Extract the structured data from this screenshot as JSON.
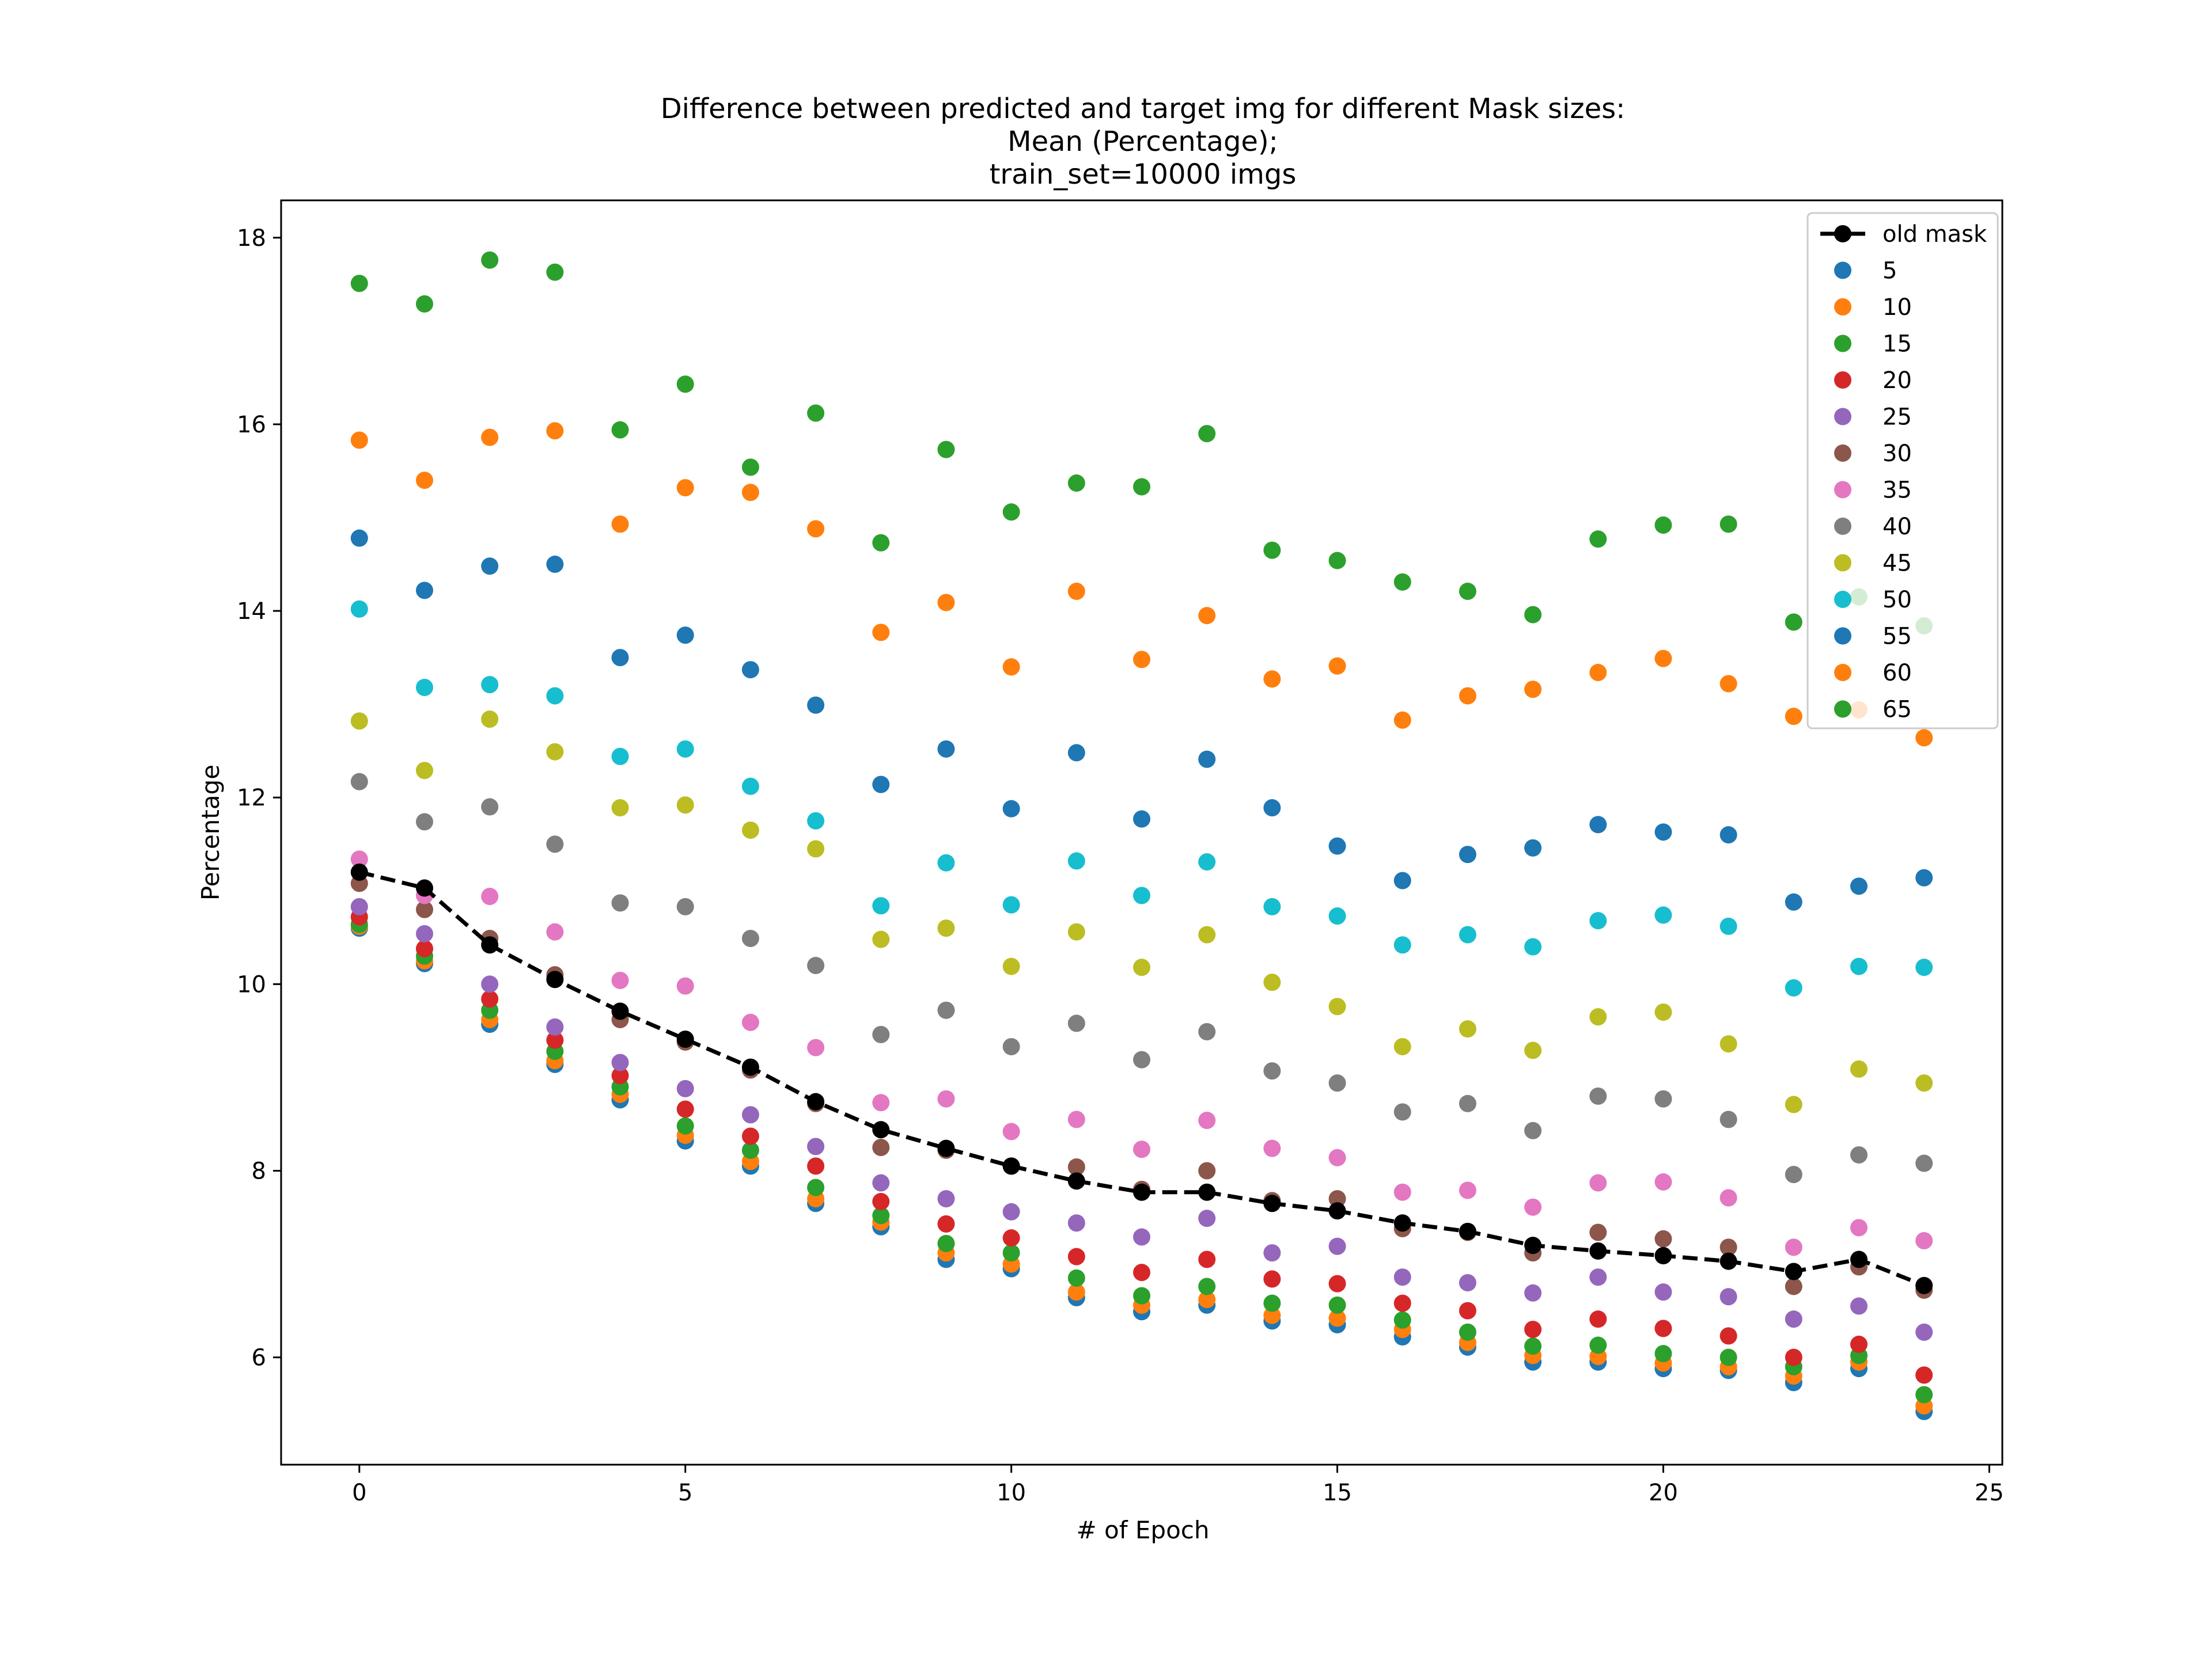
{
  "chart_data": {
    "type": "scatter",
    "title": [
      "Difference between predicted and target img for different Mask sizes:",
      "Mean (Percentage);",
      "train_set=10000 imgs"
    ],
    "xlabel": "# of Epoch",
    "ylabel": "Percentage",
    "xlim": [
      -1.2,
      25.2
    ],
    "ylim": [
      4.85,
      18.4
    ],
    "xticks": [
      0,
      5,
      10,
      15,
      20,
      25
    ],
    "yticks": [
      6,
      8,
      10,
      12,
      14,
      16,
      18
    ],
    "x": [
      0,
      1,
      2,
      3,
      4,
      5,
      6,
      7,
      8,
      9,
      10,
      11,
      12,
      13,
      14,
      15,
      16,
      17,
      18,
      19,
      20,
      21,
      22,
      23,
      24
    ],
    "legend_position": "top-right",
    "grid": false,
    "series": [
      {
        "name": "old mask",
        "kind": "line",
        "color": "#000000",
        "values": [
          11.2,
          11.03,
          10.42,
          10.05,
          9.71,
          9.41,
          9.11,
          8.74,
          8.44,
          8.24,
          8.05,
          7.89,
          7.77,
          7.77,
          7.65,
          7.57,
          7.44,
          7.35,
          7.2,
          7.14,
          7.09,
          7.03,
          6.92,
          7.05,
          6.77
        ]
      },
      {
        "name": "5",
        "kind": "scatter",
        "color": "#1f77b4",
        "values": [
          10.6,
          10.22,
          9.57,
          9.14,
          8.76,
          8.32,
          8.05,
          7.65,
          7.4,
          7.05,
          6.95,
          6.64,
          6.49,
          6.56,
          6.39,
          6.35,
          6.22,
          6.11,
          5.95,
          5.95,
          5.88,
          5.86,
          5.73,
          5.88,
          5.42
        ]
      },
      {
        "name": "10",
        "kind": "scatter",
        "color": "#ff7f0e",
        "values": [
          10.62,
          10.25,
          9.62,
          9.18,
          8.82,
          8.38,
          8.1,
          7.7,
          7.45,
          7.12,
          7.0,
          6.7,
          6.56,
          6.62,
          6.45,
          6.42,
          6.3,
          6.16,
          6.02,
          6.01,
          5.94,
          5.9,
          5.8,
          5.95,
          5.48
        ]
      },
      {
        "name": "15",
        "kind": "scatter",
        "color": "#2ca02c",
        "values": [
          10.64,
          10.3,
          9.72,
          9.28,
          8.9,
          8.48,
          8.22,
          7.82,
          7.52,
          7.22,
          7.12,
          6.85,
          6.66,
          6.76,
          6.58,
          6.56,
          6.4,
          6.27,
          6.12,
          6.13,
          6.04,
          6.0,
          5.9,
          6.02,
          5.6
        ]
      },
      {
        "name": "20",
        "kind": "scatter",
        "color": "#d62728",
        "values": [
          10.72,
          10.38,
          9.84,
          9.4,
          9.02,
          8.66,
          8.37,
          8.05,
          7.67,
          7.43,
          7.28,
          7.08,
          6.91,
          7.05,
          6.84,
          6.79,
          6.58,
          6.5,
          6.3,
          6.41,
          6.31,
          6.23,
          6.0,
          6.14,
          5.81
        ]
      },
      {
        "name": "25",
        "kind": "scatter",
        "color": "#9467bd",
        "values": [
          10.83,
          10.54,
          10.0,
          9.54,
          9.16,
          8.88,
          8.6,
          8.26,
          7.87,
          7.7,
          7.56,
          7.44,
          7.29,
          7.49,
          7.12,
          7.19,
          6.86,
          6.8,
          6.69,
          6.86,
          6.7,
          6.65,
          6.41,
          6.55,
          6.27
        ]
      },
      {
        "name": "30",
        "kind": "scatter",
        "color": "#8c564b",
        "values": [
          11.08,
          10.8,
          10.49,
          10.1,
          9.62,
          9.38,
          9.08,
          8.72,
          8.25,
          8.22,
          8.05,
          8.04,
          7.8,
          8.0,
          7.68,
          7.7,
          7.38,
          7.34,
          7.12,
          7.34,
          7.27,
          7.18,
          6.76,
          6.97,
          6.72
        ]
      },
      {
        "name": "35",
        "kind": "scatter",
        "color": "#e377c2",
        "values": [
          11.34,
          10.95,
          10.94,
          10.56,
          10.04,
          9.98,
          9.59,
          9.32,
          8.73,
          8.77,
          8.42,
          8.55,
          8.23,
          8.54,
          8.24,
          8.14,
          7.77,
          7.79,
          7.61,
          7.87,
          7.88,
          7.71,
          7.18,
          7.39,
          7.25
        ]
      },
      {
        "name": "40",
        "kind": "scatter",
        "color": "#7f7f7f",
        "values": [
          12.17,
          11.74,
          11.9,
          11.5,
          10.87,
          10.83,
          10.49,
          10.2,
          9.46,
          9.72,
          9.33,
          9.58,
          9.19,
          9.49,
          9.07,
          8.94,
          8.63,
          8.72,
          8.43,
          8.8,
          8.77,
          8.55,
          7.96,
          8.17,
          8.08
        ]
      },
      {
        "name": "45",
        "kind": "scatter",
        "color": "#bcbd22",
        "values": [
          12.82,
          12.29,
          12.84,
          12.49,
          11.89,
          11.92,
          11.65,
          11.45,
          10.48,
          10.6,
          10.19,
          10.56,
          10.18,
          10.53,
          10.02,
          9.76,
          9.33,
          9.52,
          9.29,
          9.65,
          9.7,
          9.36,
          8.71,
          9.09,
          8.94
        ]
      },
      {
        "name": "50",
        "kind": "scatter",
        "color": "#17becf",
        "values": [
          14.02,
          13.18,
          13.21,
          13.09,
          12.44,
          12.52,
          12.12,
          11.75,
          10.84,
          11.3,
          10.85,
          11.32,
          10.95,
          11.31,
          10.83,
          10.73,
          10.42,
          10.53,
          10.4,
          10.68,
          10.74,
          10.62,
          9.96,
          10.19,
          10.18
        ]
      },
      {
        "name": "55",
        "kind": "scatter",
        "color": "#1f77b4",
        "values": [
          14.78,
          14.22,
          14.48,
          14.5,
          13.5,
          13.74,
          13.37,
          12.99,
          12.14,
          12.52,
          11.88,
          12.48,
          11.77,
          12.41,
          11.89,
          11.48,
          11.11,
          11.39,
          11.46,
          11.71,
          11.63,
          11.6,
          10.88,
          11.05,
          11.14
        ]
      },
      {
        "name": "60",
        "kind": "scatter",
        "color": "#ff7f0e",
        "values": [
          15.83,
          15.4,
          15.86,
          15.93,
          14.93,
          15.32,
          15.27,
          14.88,
          13.77,
          14.09,
          13.4,
          14.21,
          13.48,
          13.95,
          13.27,
          13.41,
          12.83,
          13.09,
          13.16,
          13.34,
          13.49,
          13.22,
          12.87,
          12.94,
          12.64
        ]
      },
      {
        "name": "65",
        "kind": "scatter",
        "color": "#2ca02c",
        "values": [
          17.51,
          17.29,
          17.76,
          17.63,
          15.94,
          16.43,
          15.54,
          16.12,
          14.73,
          15.73,
          15.06,
          15.37,
          15.33,
          15.9,
          14.65,
          14.54,
          14.31,
          14.21,
          13.96,
          14.77,
          14.92,
          14.93,
          13.88,
          14.15,
          13.84
        ]
      }
    ]
  }
}
